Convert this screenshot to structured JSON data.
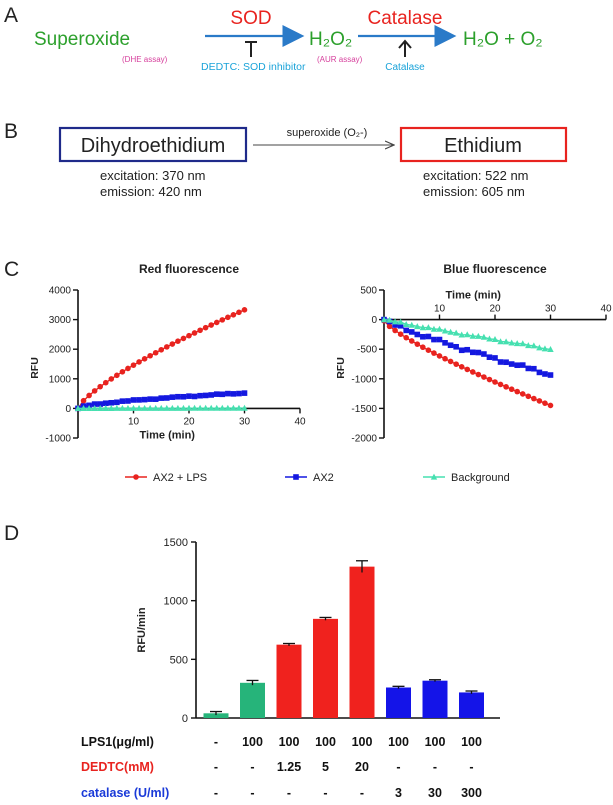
{
  "colors": {
    "green": "#2ca02c",
    "red": "#e8231f",
    "blue_arrow": "#2a7ac8",
    "magenta": "#d63f9c",
    "cyan": "#1aa3d9",
    "navy": "#1f2a8a",
    "series_red": "#e8231f",
    "series_blue": "#1418e0",
    "series_teal": "#46e0b0",
    "bar_green": "#26b47a",
    "bar_red": "#f0221e",
    "bar_blue": "#1414e8"
  },
  "panel_a": {
    "label": "A",
    "superoxide": "Superoxide",
    "dhe_assay": "(DHE assay)",
    "sod": "SOD",
    "dedtc": "DEDTC: SOD inhibitor",
    "h2o2": "H₂O₂",
    "aur_assay": "(AUR assay)",
    "catalase": "Catalase",
    "catalase_small": "Catalase",
    "products": "H₂O + O₂"
  },
  "panel_b": {
    "label": "B",
    "left_box": "Dihydroethidium",
    "left_excitation": "excitation: 370 nm",
    "left_emission": "emission: 420 nm",
    "arrow_label": "superoxide (O₂-)",
    "right_box": "Ethidium",
    "right_excitation": "excitation: 522 nm",
    "right_emission": "emission: 605 nm"
  },
  "panel_c_label": "C",
  "panel_d_label": "D",
  "legend": {
    "items": [
      "AX2 + LPS",
      "AX2",
      "Background"
    ]
  },
  "chart_data": [
    {
      "type": "scatter",
      "title": "Red fluorescence",
      "xlabel": "Time (min)",
      "ylabel": "RFU",
      "xlim": [
        0,
        40
      ],
      "ylim": [
        -1000,
        4000
      ],
      "xticks": [
        10,
        20,
        30,
        40
      ],
      "yticks": [
        -1000,
        0,
        1000,
        2000,
        3000,
        4000
      ],
      "series": [
        {
          "name": "AX2 + LPS",
          "color": "#e8231f",
          "marker": "circle",
          "start": 0,
          "end": 3330,
          "curve": 0.75
        },
        {
          "name": "AX2",
          "color": "#1418e0",
          "marker": "square",
          "start": 0,
          "end": 520,
          "curve": 0.6
        },
        {
          "name": "Background",
          "color": "#46e0b0",
          "marker": "triangle",
          "start": 0,
          "end": 10,
          "curve": 1.0
        }
      ]
    },
    {
      "type": "scatter",
      "title": "Blue fluorescence",
      "xlabel": "Time (min)",
      "ylabel": "RFU",
      "xlim": [
        0,
        40
      ],
      "ylim": [
        -2000,
        500
      ],
      "xticks": [
        10,
        20,
        30,
        40
      ],
      "yticks": [
        -2000,
        -1500,
        -1000,
        -500,
        0,
        500
      ],
      "series": [
        {
          "name": "AX2 + LPS",
          "color": "#e8231f",
          "marker": "circle",
          "start": -20,
          "end": -1450,
          "curve": 0.8
        },
        {
          "name": "AX2",
          "color": "#1418e0",
          "marker": "square",
          "start": 0,
          "end": -930,
          "curve": 0.85
        },
        {
          "name": "Background",
          "color": "#46e0b0",
          "marker": "triangle",
          "start": 0,
          "end": -500,
          "curve": 0.95
        }
      ]
    },
    {
      "type": "bar",
      "ylabel": "RFU/min",
      "ylim": [
        0,
        1500
      ],
      "yticks": [
        0,
        500,
        1000,
        1500
      ],
      "values": [
        40,
        300,
        625,
        845,
        1290,
        260,
        318,
        218
      ],
      "errors": [
        15,
        20,
        10,
        12,
        50,
        10,
        8,
        12
      ],
      "colors": [
        "#26b47a",
        "#26b47a",
        "#f0221e",
        "#f0221e",
        "#f0221e",
        "#1414e8",
        "#1414e8",
        "#1414e8"
      ],
      "conditions": [
        {
          "label": "LPS1(μg/ml)",
          "color": "#111111",
          "values": [
            "-",
            "100",
            "100",
            "100",
            "100",
            "100",
            "100",
            "100"
          ]
        },
        {
          "label": "DEDTC(mM)",
          "color": "#e8231f",
          "values": [
            "-",
            "-",
            "1.25",
            "5",
            "20",
            "-",
            "-",
            "-"
          ]
        },
        {
          "label": "catalase (U/ml)",
          "color": "#1a3ad8",
          "values": [
            "-",
            "-",
            "-",
            "-",
            "-",
            "3",
            "30",
            "300"
          ]
        }
      ]
    }
  ]
}
